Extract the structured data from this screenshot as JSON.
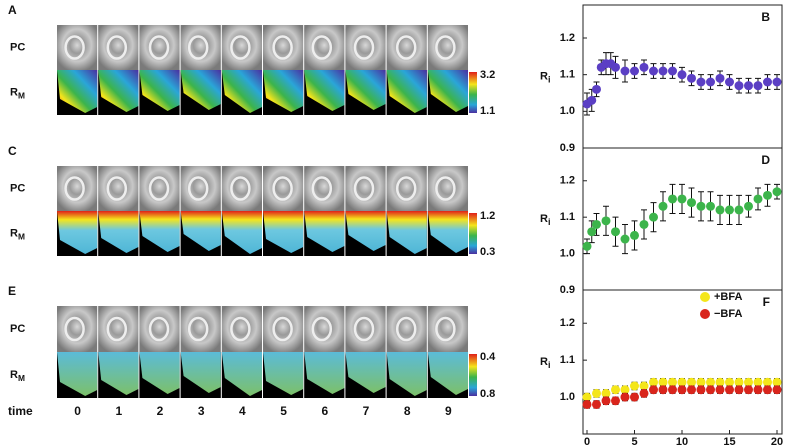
{
  "image_panels": [
    {
      "label": "A",
      "row_pc": "PC",
      "row_rm": "R",
      "row_rm_sub": "M",
      "colorbar_top": "3.2",
      "colorbar_bottom": "1.1"
    },
    {
      "label": "C",
      "row_pc": "PC",
      "row_rm": "R",
      "row_rm_sub": "M",
      "colorbar_top": "1.2",
      "colorbar_bottom": "0.3"
    },
    {
      "label": "E",
      "row_pc": "PC",
      "row_rm": "R",
      "row_rm_sub": "M",
      "colorbar_top": "0.4",
      "colorbar_bottom": "0.8"
    }
  ],
  "time_axis": {
    "label": "time",
    "ticks": [
      0,
      1,
      2,
      3,
      4,
      5,
      6,
      7,
      8,
      9
    ]
  },
  "chart_data": [
    {
      "type": "scatter",
      "label": "B",
      "ylabel": "R",
      "ylabel_sub": "i",
      "xlim": [
        0,
        20
      ],
      "ylim": [
        0.9,
        1.29
      ],
      "yticks": [
        0.9,
        {
          "value": 1,
          "label": "1.0"
        },
        1.1,
        1.2
      ],
      "series": [
        {
          "name": null,
          "color": "#5b3fc4",
          "x": [
            0,
            0.5,
            1,
            1.5,
            2,
            2.5,
            3,
            4,
            5,
            6,
            7,
            8,
            9,
            10,
            11,
            12,
            13,
            14,
            15,
            16,
            17,
            18,
            19,
            20
          ],
          "values": [
            1.02,
            1.03,
            1.06,
            1.12,
            1.13,
            1.13,
            1.12,
            1.11,
            1.11,
            1.12,
            1.11,
            1.11,
            1.11,
            1.1,
            1.09,
            1.08,
            1.08,
            1.09,
            1.08,
            1.07,
            1.07,
            1.07,
            1.08,
            1.08
          ],
          "errors": [
            0.03,
            0.03,
            0.02,
            0.02,
            0.03,
            0.03,
            0.03,
            0.03,
            0.02,
            0.02,
            0.02,
            0.02,
            0.02,
            0.02,
            0.02,
            0.02,
            0.02,
            0.02,
            0.02,
            0.02,
            0.02,
            0.02,
            0.02,
            0.02
          ]
        }
      ]
    },
    {
      "type": "scatter",
      "label": "D",
      "ylabel": "R",
      "ylabel_sub": "i",
      "xlim": [
        0,
        20
      ],
      "ylim": [
        0.9,
        1.29
      ],
      "yticks": [
        0.9,
        {
          "value": 1,
          "label": "1.0"
        },
        1.1,
        1.2
      ],
      "series": [
        {
          "name": null,
          "color": "#3cb44b",
          "x": [
            0,
            0.5,
            1,
            2,
            3,
            4,
            5,
            6,
            7,
            8,
            9,
            10,
            11,
            12,
            13,
            14,
            15,
            16,
            17,
            18,
            19,
            20
          ],
          "values": [
            1.02,
            1.06,
            1.08,
            1.09,
            1.06,
            1.04,
            1.05,
            1.08,
            1.1,
            1.13,
            1.15,
            1.15,
            1.14,
            1.13,
            1.13,
            1.12,
            1.12,
            1.12,
            1.13,
            1.15,
            1.16,
            1.17
          ],
          "errors": [
            0.02,
            0.03,
            0.03,
            0.04,
            0.04,
            0.04,
            0.04,
            0.04,
            0.04,
            0.04,
            0.04,
            0.04,
            0.04,
            0.04,
            0.04,
            0.04,
            0.04,
            0.04,
            0.03,
            0.03,
            0.03,
            0.02
          ]
        }
      ]
    },
    {
      "type": "scatter",
      "label": "F",
      "ylabel": "R",
      "ylabel_sub": "i",
      "xlim": [
        0,
        20
      ],
      "ylim": [
        0.9,
        1.29
      ],
      "xticks": [
        0,
        5,
        10,
        15,
        20
      ],
      "yticks": [
        {
          "value": 1,
          "label": "1.0"
        },
        1.1,
        1.2
      ],
      "legend": "upper right",
      "series": [
        {
          "name": "+BFA",
          "color": "#f4e619",
          "x": [
            0,
            1,
            2,
            3,
            4,
            5,
            6,
            7,
            8,
            9,
            10,
            11,
            12,
            13,
            14,
            15,
            16,
            17,
            18,
            19,
            20
          ],
          "values": [
            1.0,
            1.01,
            1.01,
            1.02,
            1.02,
            1.03,
            1.03,
            1.04,
            1.04,
            1.04,
            1.04,
            1.04,
            1.04,
            1.04,
            1.04,
            1.04,
            1.04,
            1.04,
            1.04,
            1.04,
            1.04
          ],
          "errors": [
            0.01,
            0.01,
            0.01,
            0.01,
            0.01,
            0.01,
            0.01,
            0.01,
            0.01,
            0.01,
            0.01,
            0.01,
            0.01,
            0.01,
            0.01,
            0.01,
            0.01,
            0.01,
            0.01,
            0.01,
            0.01
          ]
        },
        {
          "name": "−BFA",
          "color": "#d9251c",
          "x": [
            0,
            1,
            2,
            3,
            4,
            5,
            6,
            7,
            8,
            9,
            10,
            11,
            12,
            13,
            14,
            15,
            16,
            17,
            18,
            19,
            20
          ],
          "values": [
            0.98,
            0.98,
            0.99,
            0.99,
            1.0,
            1.0,
            1.01,
            1.02,
            1.02,
            1.02,
            1.02,
            1.02,
            1.02,
            1.02,
            1.02,
            1.02,
            1.02,
            1.02,
            1.02,
            1.02,
            1.02
          ],
          "errors": [
            0.01,
            0.01,
            0.01,
            0.01,
            0.01,
            0.01,
            0.01,
            0.01,
            0.01,
            0.01,
            0.01,
            0.01,
            0.01,
            0.01,
            0.01,
            0.01,
            0.01,
            0.01,
            0.01,
            0.01,
            0.01
          ]
        }
      ]
    }
  ]
}
